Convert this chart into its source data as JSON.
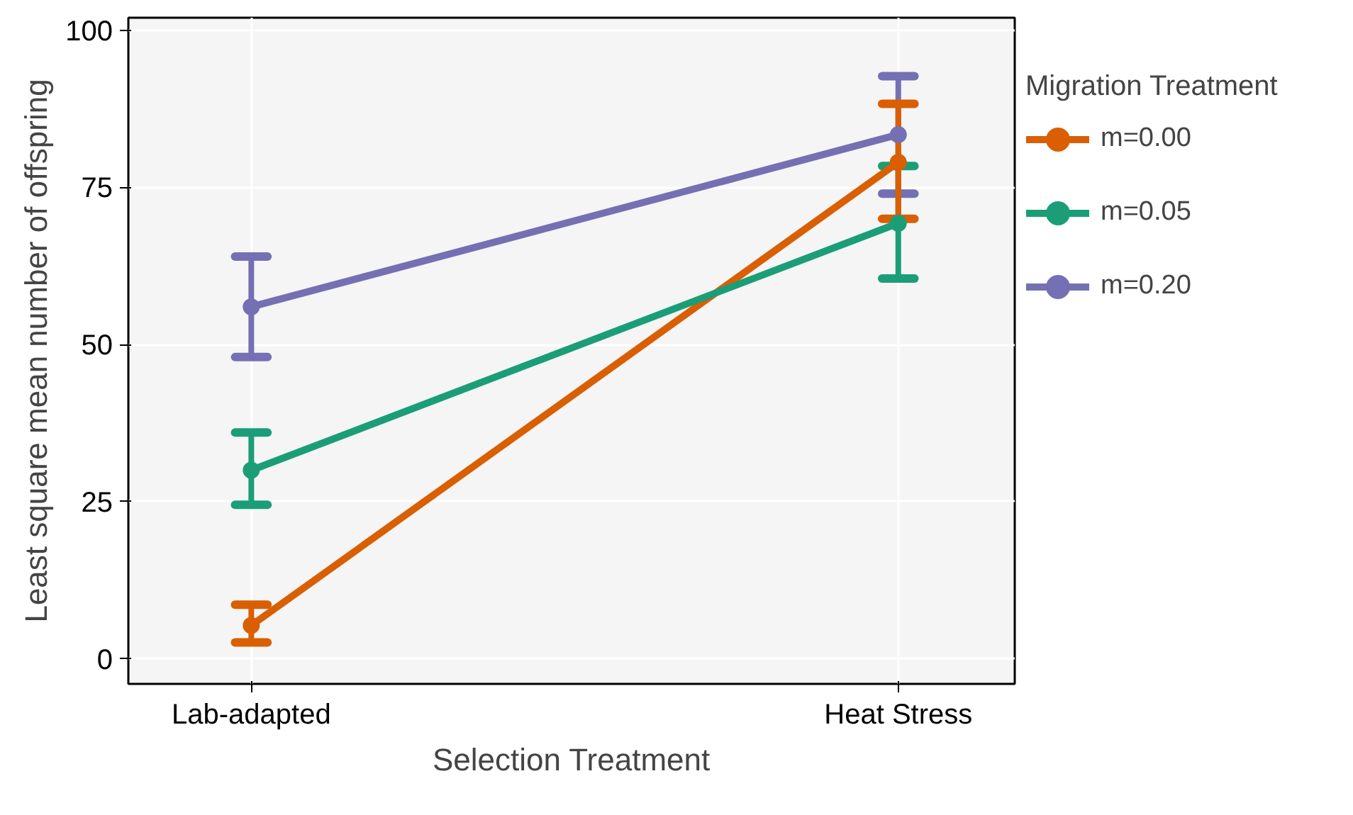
{
  "chart_data": {
    "type": "line",
    "xlabel": "Selection Treatment",
    "ylabel": "Least square mean number of offspring",
    "legend_title": "Migration Treatment",
    "categories": [
      "Lab-adapted",
      "Heat Stress"
    ],
    "series": [
      {
        "name": "m=0.00",
        "color": "#d95f02",
        "values": [
          5.3,
          79
        ],
        "errors": [
          [
            2.6,
            8.6
          ],
          [
            70,
            88.3
          ]
        ]
      },
      {
        "name": "m=0.05",
        "color": "#1b9e77",
        "values": [
          30,
          69.3
        ],
        "errors": [
          [
            24.5,
            36
          ],
          [
            60.5,
            78.4
          ]
        ]
      },
      {
        "name": "m=0.20",
        "color": "#7570b3",
        "values": [
          56,
          83.4
        ],
        "errors": [
          [
            48,
            64
          ],
          [
            74,
            92.7
          ]
        ]
      }
    ],
    "ylim": [
      -4,
      102
    ],
    "yticks": [
      0,
      25,
      50,
      75,
      100
    ],
    "grid": true,
    "legend": "right",
    "marker": "circle",
    "line_style": "solid"
  }
}
